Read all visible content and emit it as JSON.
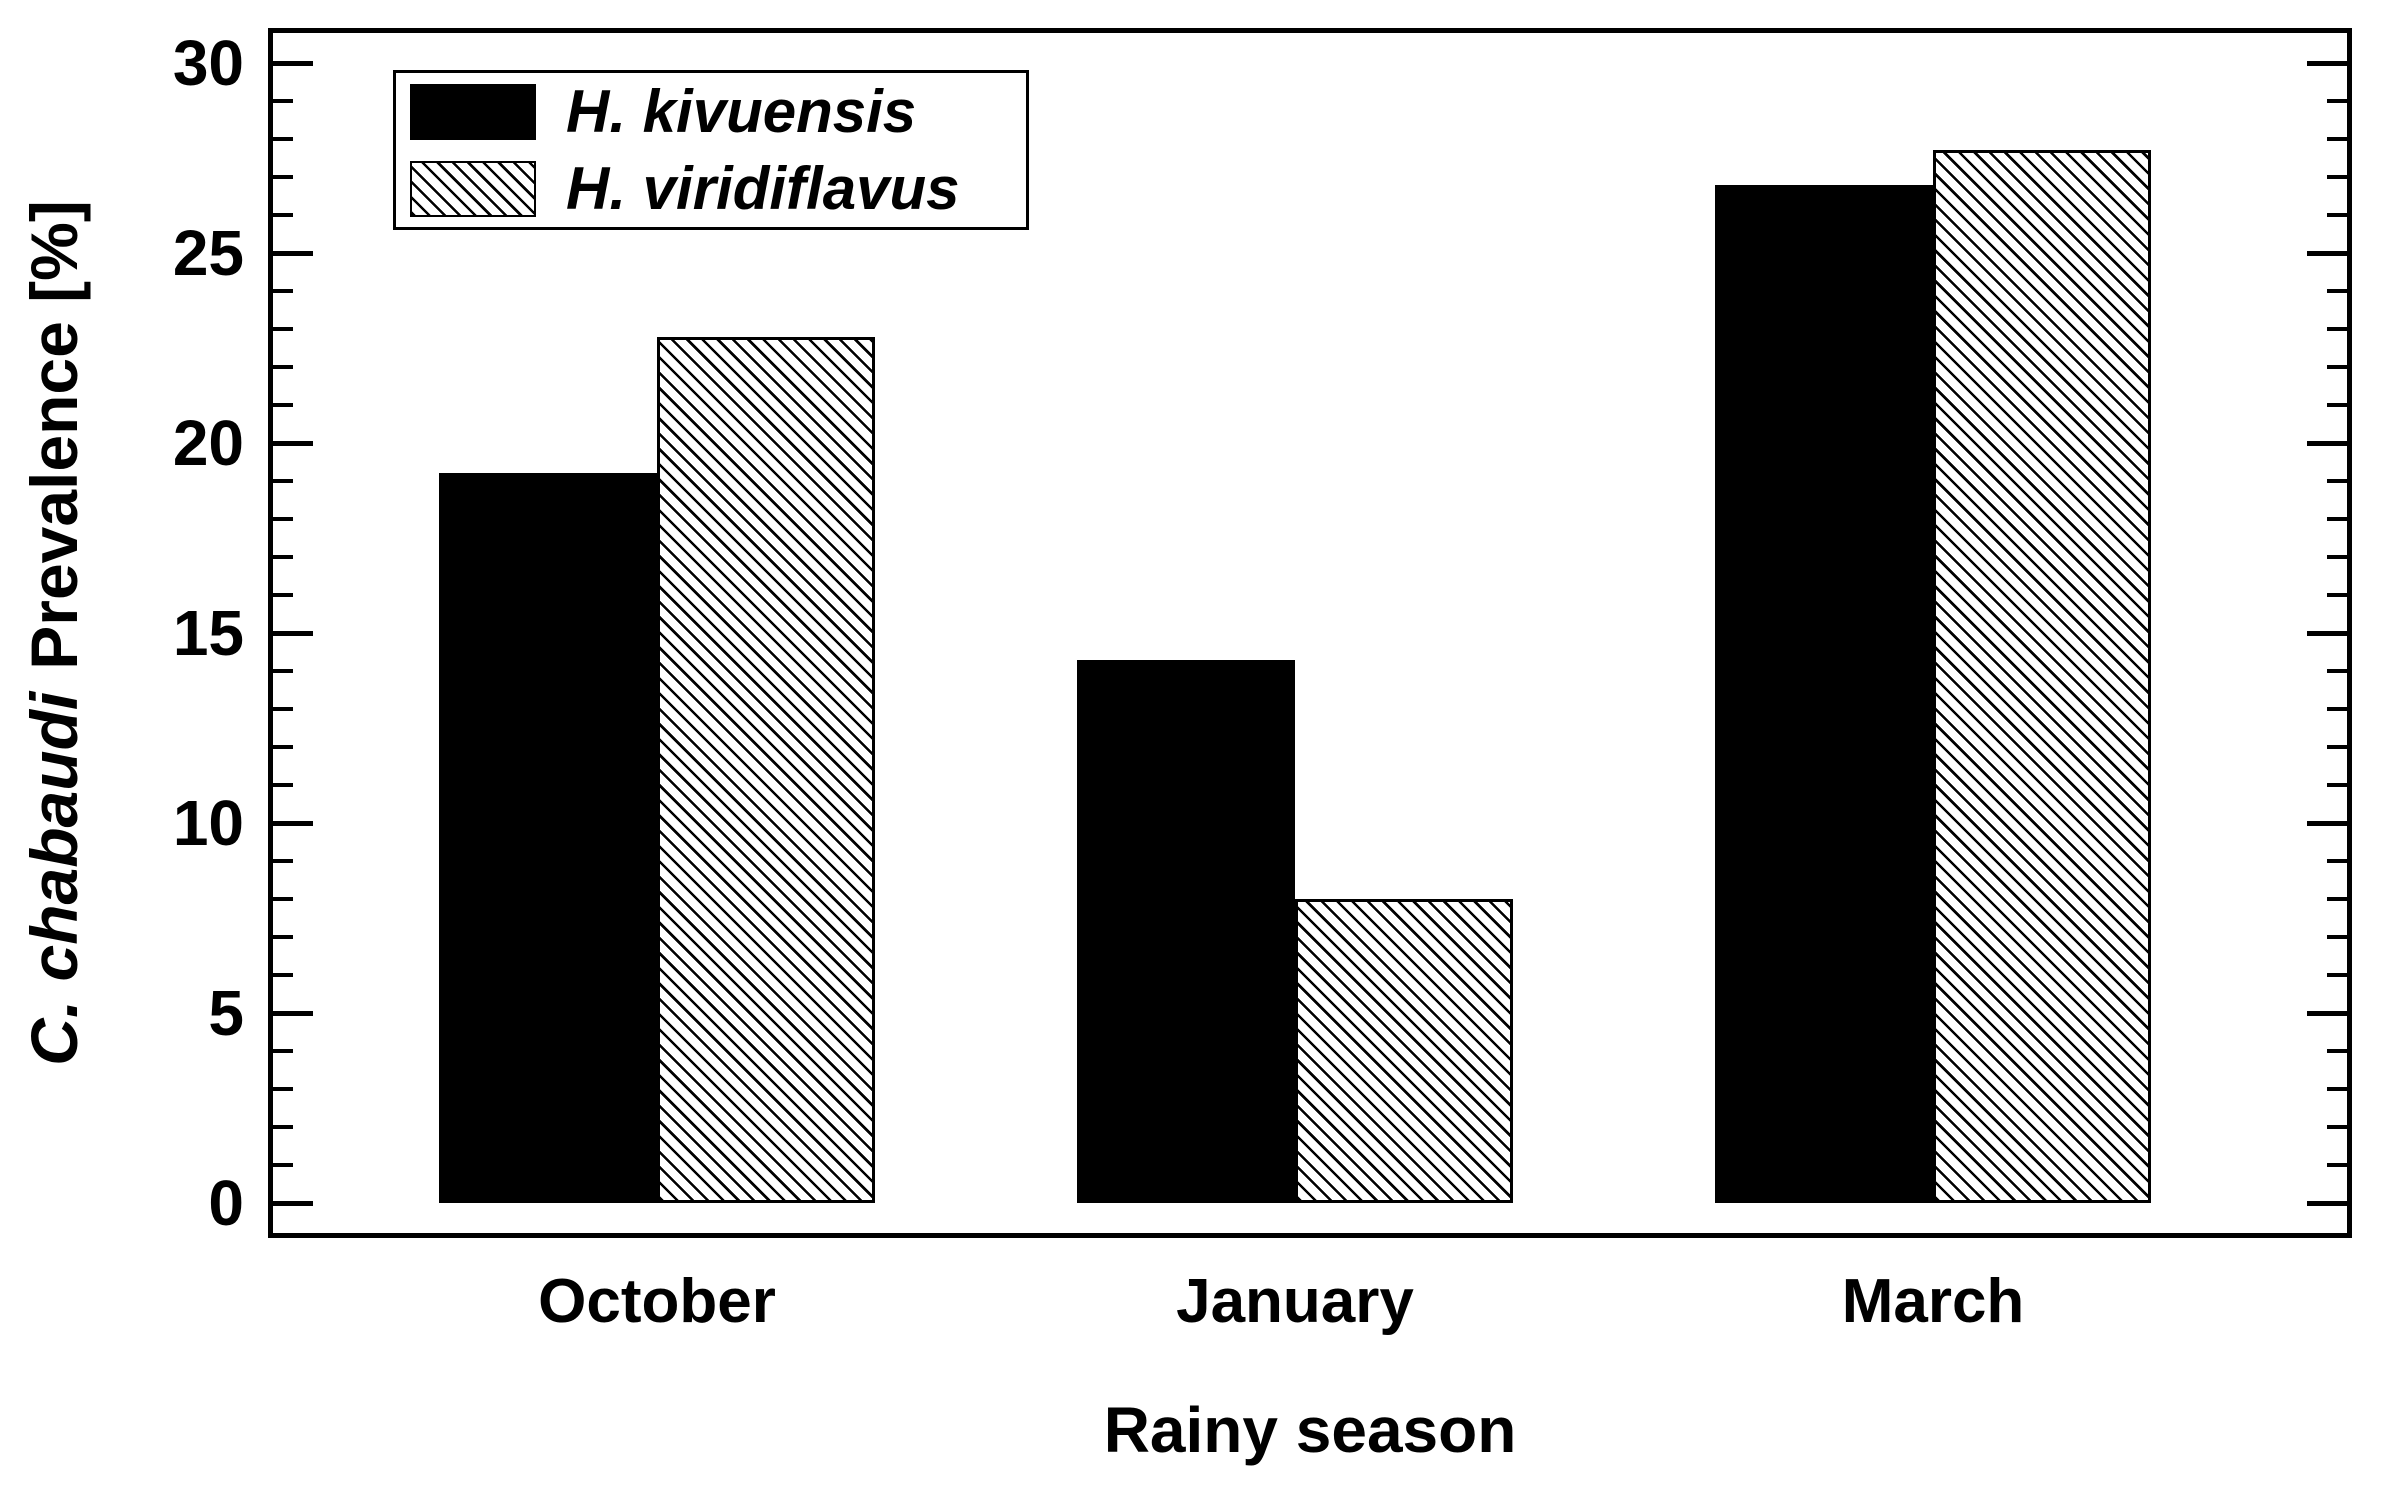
{
  "figure": {
    "background": "#ffffff",
    "ink_color": "#000000"
  },
  "chart_data": {
    "type": "bar",
    "title": "",
    "categories": [
      "October",
      "January",
      "March"
    ],
    "series": [
      {
        "name": "H. kivuensis",
        "pattern": "solid-black",
        "values": [
          19.2,
          14.3,
          26.8
        ]
      },
      {
        "name": "H. viridiflavus",
        "pattern": "diagonal-hatch",
        "values": [
          22.8,
          8.0,
          27.7
        ]
      }
    ],
    "xlabel": "Rainy season",
    "ylabel_italic": "C. chabaudi",
    "ylabel_rest": "Prevalence [%]",
    "ylim": [
      0,
      30
    ],
    "y_major_ticks": [
      "0",
      "5",
      "10",
      "15",
      "20",
      "25",
      "30"
    ],
    "y_minor_tick_step": 1,
    "grid": false,
    "legend_position": "top-left",
    "bar_colors": {
      "solid": "#000000",
      "hatch_line": "#000000",
      "hatch_bg": "#ffffff"
    }
  },
  "legend": {
    "items": [
      {
        "label": "H. kivuensis",
        "swatch": "solid-black-swatch"
      },
      {
        "label": "H. viridiflavus",
        "swatch": "hatched-swatch"
      }
    ]
  }
}
